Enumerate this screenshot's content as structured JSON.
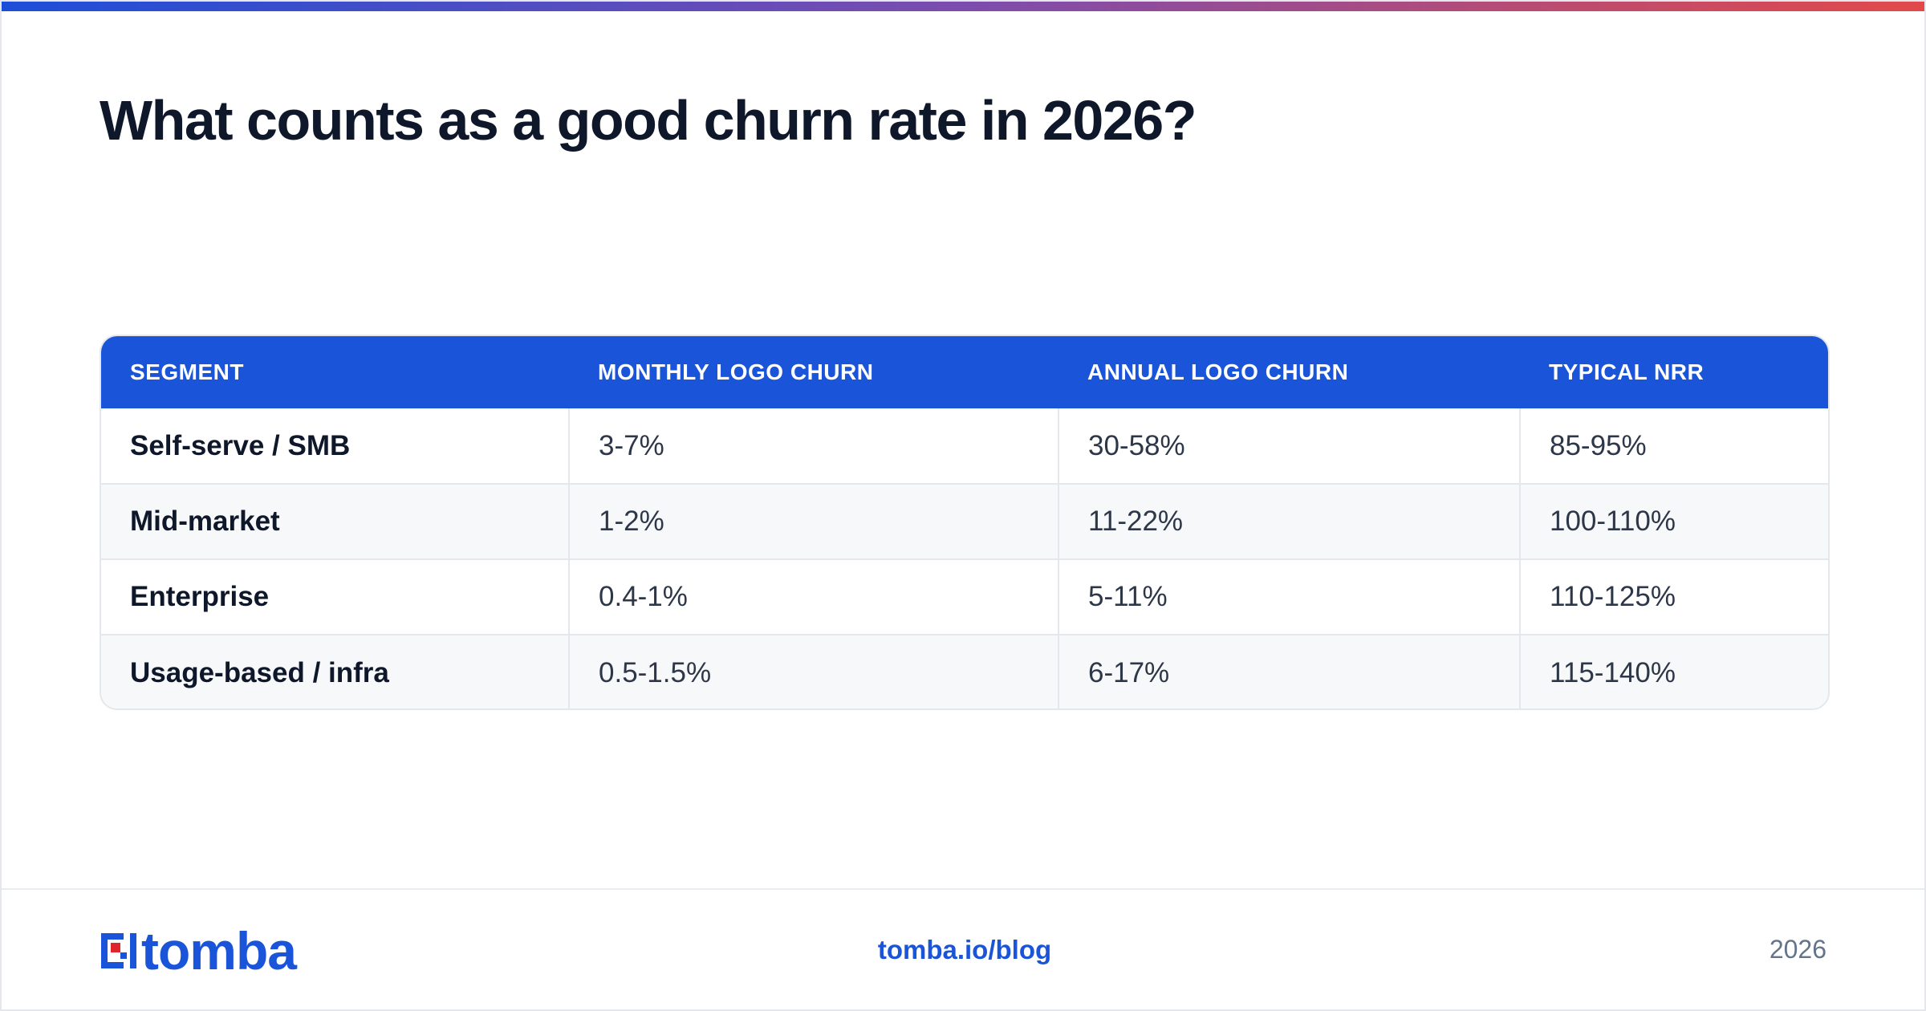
{
  "page": {
    "title": "What counts as a good churn rate in 2026?"
  },
  "table": {
    "headers": [
      "SEGMENT",
      "MONTHLY LOGO CHURN",
      "ANNUAL LOGO CHURN",
      "TYPICAL NRR"
    ],
    "rows": [
      [
        "Self-serve / SMB",
        "3-7%",
        "30-58%",
        "85-95%"
      ],
      [
        "Mid-market",
        "1-2%",
        "11-22%",
        "100-110%"
      ],
      [
        "Enterprise",
        "0.4-1%",
        "5-11%",
        "110-125%"
      ],
      [
        "Usage-based / infra",
        "0.5-1.5%",
        "6-17%",
        "115-140%"
      ]
    ]
  },
  "footer": {
    "logo_text": "tomba",
    "link": "tomba.io/blog",
    "year": "2026"
  },
  "colors": {
    "brand_blue": "#1a54d9",
    "brand_red": "#e0262d",
    "gradient_start": "#1d4ed8",
    "gradient_end": "#e24a4a"
  }
}
